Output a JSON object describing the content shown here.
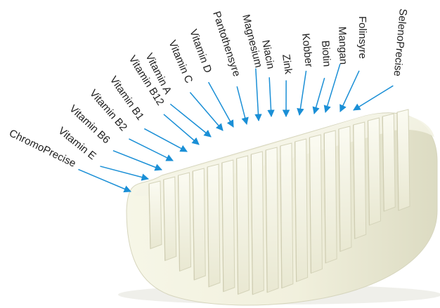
{
  "diagram": {
    "labels": [
      "ChromoPrecise",
      "Vitamin E",
      "Vitamin B6",
      "Vitamin B2",
      "Vitamin B1",
      "Vitamin B12",
      "Vitamin A",
      "Vitamin C",
      "Vitamin D",
      "Pantothensyre",
      "Magnesium",
      "Niacin",
      "Zink",
      "Kobber",
      "Biotin",
      "Mangan",
      "Folinsyre",
      "SelenoPrecise"
    ],
    "colors": {
      "arrow": "#1a8fd6",
      "text": "#1e1e1e",
      "tablet_light": "#f7f7ea",
      "tablet_mid": "#ecebd6",
      "tablet_shadow": "#d9d8c0"
    }
  }
}
